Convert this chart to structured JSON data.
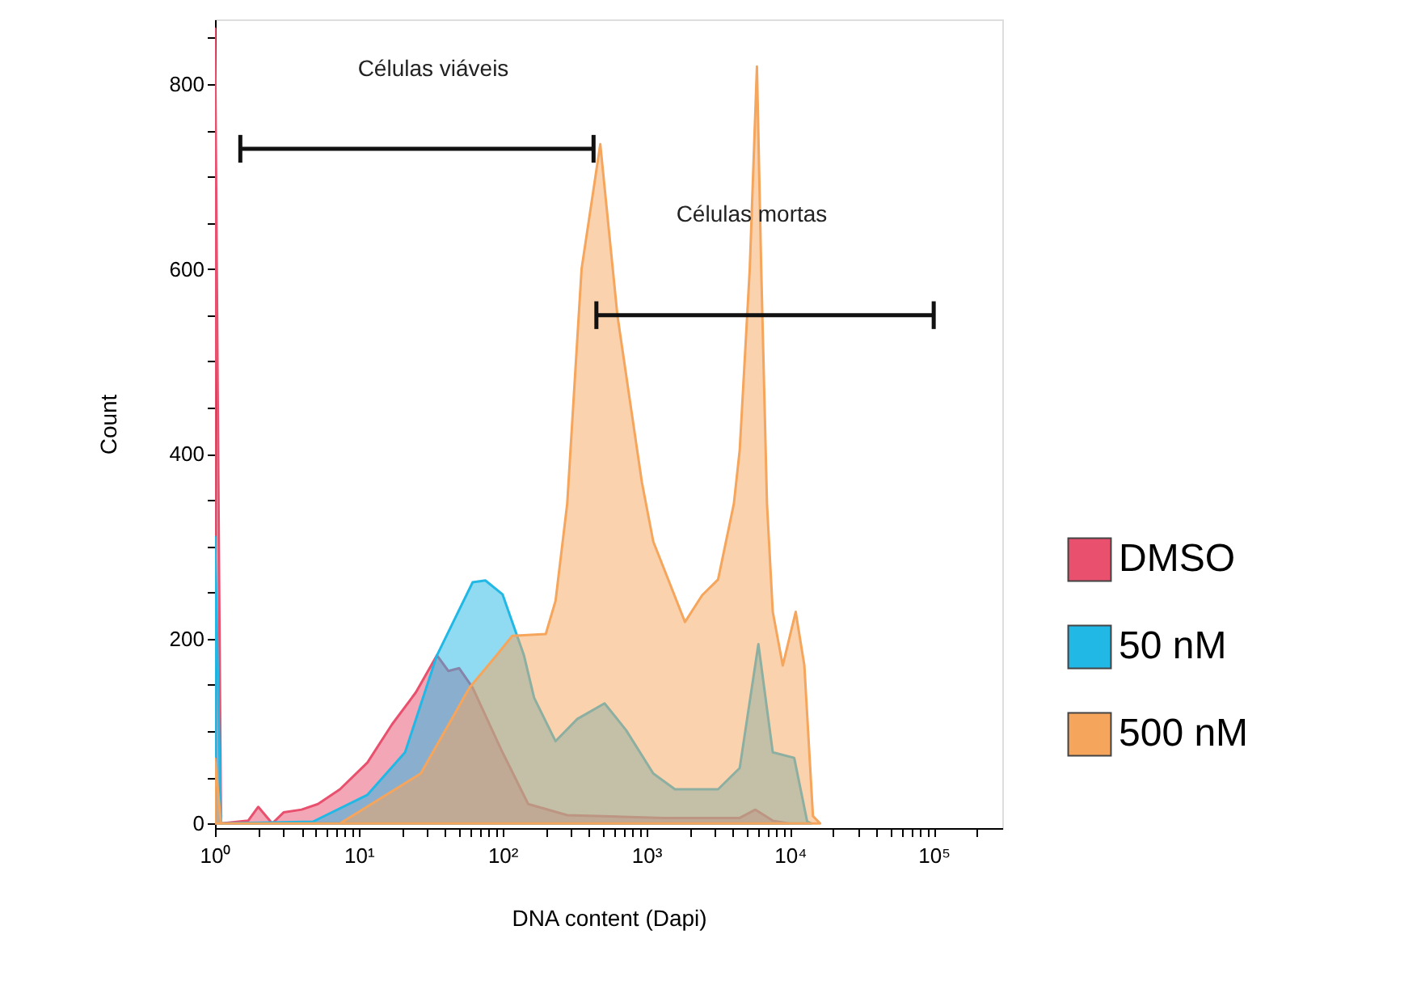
{
  "chart_data": {
    "type": "area",
    "xlabel": "DNA content (Dapi)",
    "ylabel": "Count",
    "log": "x",
    "grid": false,
    "legend": "right",
    "xlim": [
      1,
      300000
    ],
    "ylim": [
      -5,
      870
    ],
    "xticks": [
      {
        "value": 1,
        "label": "10⁰"
      },
      {
        "value": 2,
        "label": null
      },
      {
        "value": 3,
        "label": null
      },
      {
        "value": 4,
        "label": null
      },
      {
        "value": 5,
        "label": null
      },
      {
        "value": 6,
        "label": null
      },
      {
        "value": 7,
        "label": null
      },
      {
        "value": 8,
        "label": null
      },
      {
        "value": 9,
        "label": null
      },
      {
        "value": 10,
        "label": "10¹"
      },
      {
        "value": 20,
        "label": null
      },
      {
        "value": 30,
        "label": null
      },
      {
        "value": 40,
        "label": null
      },
      {
        "value": 50,
        "label": null
      },
      {
        "value": 60,
        "label": null
      },
      {
        "value": 70,
        "label": null
      },
      {
        "value": 80,
        "label": null
      },
      {
        "value": 90,
        "label": null
      },
      {
        "value": 100,
        "label": "10²"
      },
      {
        "value": 200,
        "label": null
      },
      {
        "value": 300,
        "label": null
      },
      {
        "value": 400,
        "label": null
      },
      {
        "value": 500,
        "label": null
      },
      {
        "value": 600,
        "label": null
      },
      {
        "value": 700,
        "label": null
      },
      {
        "value": 800,
        "label": null
      },
      {
        "value": 900,
        "label": null
      },
      {
        "value": 1000,
        "label": "10³"
      },
      {
        "value": 2000,
        "label": null
      },
      {
        "value": 3000,
        "label": null
      },
      {
        "value": 4000,
        "label": null
      },
      {
        "value": 5000,
        "label": null
      },
      {
        "value": 6000,
        "label": null
      },
      {
        "value": 7000,
        "label": null
      },
      {
        "value": 8000,
        "label": null
      },
      {
        "value": 9000,
        "label": null
      },
      {
        "value": 10000,
        "label": "10⁴"
      },
      {
        "value": 20000,
        "label": null
      },
      {
        "value": 30000,
        "label": null
      },
      {
        "value": 40000,
        "label": null
      },
      {
        "value": 50000,
        "label": null
      },
      {
        "value": 60000,
        "label": null
      },
      {
        "value": 70000,
        "label": null
      },
      {
        "value": 80000,
        "label": null
      },
      {
        "value": 90000,
        "label": null
      },
      {
        "value": 100000,
        "label": "10⁵"
      },
      {
        "value": 200000,
        "label": null
      }
    ],
    "yticks": [
      0,
      {
        "value": 50,
        "label": null
      },
      {
        "value": 100,
        "label": null
      },
      {
        "value": 150,
        "label": null
      },
      200,
      {
        "value": 250,
        "label": null
      },
      {
        "value": 300,
        "label": null
      },
      {
        "value": 350,
        "label": null
      },
      400,
      {
        "value": 450,
        "label": null
      },
      {
        "value": 500,
        "label": null
      },
      {
        "value": 550,
        "label": null
      },
      600,
      {
        "value": 650,
        "label": null
      },
      {
        "value": 700,
        "label": null
      },
      {
        "value": 750,
        "label": null
      },
      800,
      {
        "value": 850,
        "label": null
      }
    ],
    "series": [
      {
        "name": "DMSO",
        "color": "#e8506e",
        "x": [
          1,
          1.1,
          1.7,
          2,
          2.5,
          3,
          4,
          5.2,
          7.4,
          11.5,
          17,
          25,
          35,
          42,
          50,
          62,
          100,
          151,
          282,
          1320,
          4470,
          5750,
          7590,
          9770
        ],
        "values": [
          860,
          0,
          3,
          18,
          0,
          12,
          15,
          21,
          37,
          66,
          107,
          142,
          182,
          165,
          168,
          147,
          77,
          21,
          9,
          6,
          6,
          15,
          3,
          0
        ]
      },
      {
        "name": "50 nM",
        "color": "#22b8e6",
        "x": [
          1,
          1.1,
          4.8,
          11.5,
          21,
          35,
          62,
          76,
          100,
          141,
          166,
          234,
          331,
          513,
          724,
          1120,
          1585,
          3160,
          4470,
          6030,
          7590,
          10700,
          13180,
          14130
        ],
        "values": [
          310,
          0,
          2,
          31,
          77,
          182,
          261,
          263,
          248,
          182,
          136,
          89,
          113,
          130,
          101,
          54,
          37,
          37,
          60,
          194,
          77,
          71,
          2,
          0
        ]
      },
      {
        "name": "500 nM",
        "color": "#f5a55c",
        "x": [
          1,
          1.1,
          7.4,
          27,
          59,
          91,
          117,
          200,
          234,
          282,
          355,
          479,
          630,
          933,
          1120,
          1860,
          2450,
          3160,
          4070,
          4470,
          5250,
          5890,
          6310,
          6920,
          7590,
          8910,
          10960,
          12590,
          14450,
          16220
        ],
        "values": [
          70,
          0,
          0,
          54,
          147,
          182,
          203,
          205,
          241,
          346,
          600,
          735,
          550,
          369,
          305,
          218,
          247,
          264,
          346,
          404,
          600,
          819,
          600,
          346,
          229,
          171,
          229,
          171,
          8,
          0
        ]
      },
      {
        "type": "line",
        "color": "#111111",
        "x": [
          1.5,
          430
        ],
        "values": [
          730,
          730
        ],
        "errors": [
          15,
          15
        ]
      },
      {
        "type": "line",
        "color": "#111111",
        "x": [
          450,
          100000
        ],
        "values": [
          550,
          550
        ],
        "errors": [
          15,
          15
        ]
      }
    ],
    "annotations": [
      "Células viáveis",
      "Células mortas"
    ]
  }
}
